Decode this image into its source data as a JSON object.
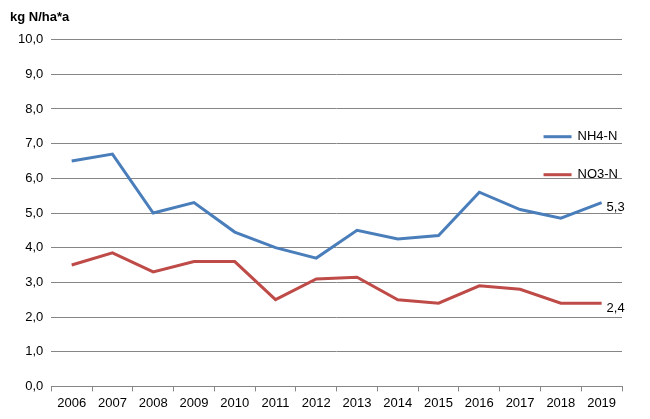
{
  "chart_data": {
    "type": "line",
    "ylabel": "kg N/ha*a",
    "categories": [
      "2006",
      "2007",
      "2008",
      "2009",
      "2010",
      "2011",
      "2012",
      "2013",
      "2014",
      "2015",
      "2016",
      "2017",
      "2018",
      "2019"
    ],
    "series": [
      {
        "name": "NH4-N",
        "color": "#4a7ebb",
        "line_style": "solid",
        "marker": "none",
        "values": [
          6.5,
          6.7,
          5.0,
          5.3,
          4.45,
          4.0,
          3.7,
          4.5,
          4.25,
          4.35,
          5.6,
          5.1,
          4.85,
          5.3
        ]
      },
      {
        "name": "NO3-N",
        "color": "#be4b48",
        "line_style": "solid",
        "marker": "none",
        "values": [
          3.5,
          3.85,
          3.3,
          3.6,
          3.6,
          2.5,
          3.1,
          3.15,
          2.5,
          2.4,
          2.9,
          2.8,
          2.4,
          2.4
        ]
      }
    ],
    "annotations": [
      {
        "series": "NH4-N",
        "x": "2019",
        "value": 5.3,
        "label": "5,3"
      },
      {
        "series": "NO3-N",
        "x": "2019",
        "value": 2.4,
        "label": "2,4"
      }
    ],
    "ylim": [
      0,
      10
    ],
    "yticks": [
      {
        "value": 0,
        "label": "0,0"
      },
      {
        "value": 1,
        "label": "1,0"
      },
      {
        "value": 2,
        "label": "2,0"
      },
      {
        "value": 3,
        "label": "3,0"
      },
      {
        "value": 4,
        "label": "4,0"
      },
      {
        "value": 5,
        "label": "5,0"
      },
      {
        "value": 6,
        "label": "6,0"
      },
      {
        "value": 7,
        "label": "7,0"
      },
      {
        "value": 8,
        "label": "8,0"
      },
      {
        "value": 9,
        "label": "9,0"
      },
      {
        "value": 10,
        "label": "10,0"
      }
    ],
    "grid": true,
    "legend": "right"
  }
}
